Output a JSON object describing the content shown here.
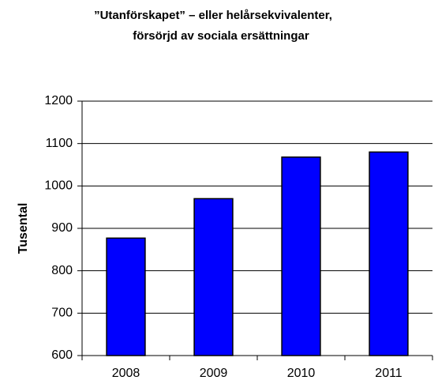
{
  "chart_data": {
    "type": "bar",
    "title_lines": [
      "”Utanförskapet” – eller helårsekvivalenter,",
      "försörjd av sociala ersättningar"
    ],
    "ylabel": "Tusental",
    "categories": [
      "2008",
      "2009",
      "2010",
      "2011"
    ],
    "values": [
      877,
      970,
      1068,
      1080
    ],
    "color": "#0000ff",
    "ylim": [
      600,
      1200
    ],
    "yticks": [
      600,
      700,
      800,
      900,
      1000,
      1100,
      1200
    ],
    "grid": true
  }
}
